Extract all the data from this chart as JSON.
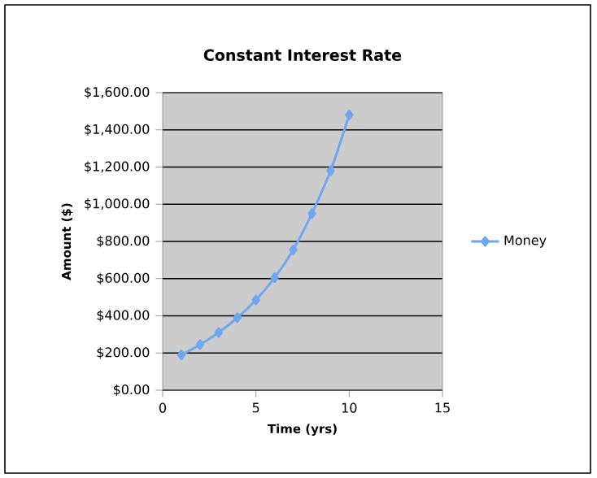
{
  "chart_data": {
    "type": "line",
    "title": "Constant Interest Rate",
    "xlabel": "Time (yrs)",
    "ylabel": "Amount ($)",
    "x": [
      1,
      2,
      3,
      4,
      5,
      6,
      7,
      8,
      9,
      10
    ],
    "series": [
      {
        "name": "Money",
        "color": "#6ea6f0",
        "values": [
          190,
          245,
          310,
          390,
          485,
          605,
          755,
          950,
          1180,
          1480
        ]
      }
    ],
    "xlim": [
      0,
      15
    ],
    "xticks": [
      0,
      5,
      10,
      15
    ],
    "ylim": [
      0,
      1600
    ],
    "yticks": [
      {
        "value": 0,
        "label": "$0.00"
      },
      {
        "value": 200,
        "label": "$200.00"
      },
      {
        "value": 400,
        "label": "$400.00"
      },
      {
        "value": 600,
        "label": "$600.00"
      },
      {
        "value": 800,
        "label": "$800.00"
      },
      {
        "value": 1000,
        "label": "$1,000.00"
      },
      {
        "value": 1200,
        "label": "$1,200.00"
      },
      {
        "value": 1400,
        "label": "$1,400.00"
      },
      {
        "value": 1600,
        "label": "$1,600.00"
      }
    ],
    "grid": "y",
    "legend": "right",
    "marker": "diamond",
    "line_style": "solid"
  }
}
